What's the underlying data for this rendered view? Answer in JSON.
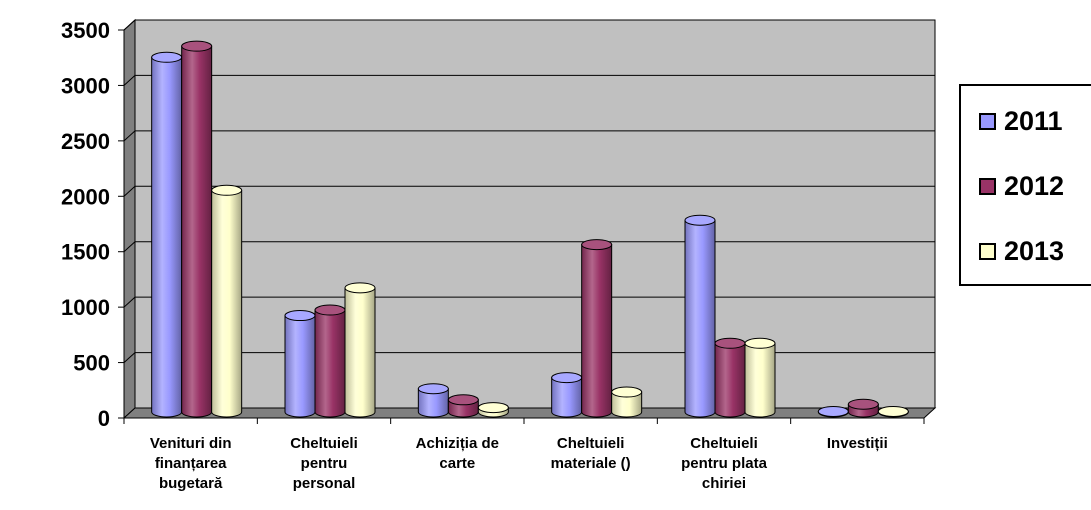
{
  "chart_data": {
    "type": "bar",
    "categories": [
      [
        "Venituri din",
        "finanțarea",
        "bugetară"
      ],
      [
        "Cheltuieli",
        "pentru",
        "personal"
      ],
      [
        "Achiziția de",
        "carte"
      ],
      [
        "Cheltuieli",
        "materiale ()"
      ],
      [
        "Cheltuieli",
        "pentru plata",
        "chiriei"
      ],
      [
        "Investiții"
      ]
    ],
    "series": [
      {
        "name": "2011",
        "color": "#9999ff",
        "values": [
          3200,
          870,
          210,
          310,
          1730,
          5
        ]
      },
      {
        "name": "2012",
        "color": "#993366",
        "values": [
          3300,
          920,
          110,
          1510,
          620,
          70
        ]
      },
      {
        "name": "2013",
        "color": "#ffffcc",
        "values": [
          2000,
          1120,
          40,
          180,
          620,
          5
        ]
      }
    ],
    "ylim": [
      0,
      3500
    ],
    "yticks": [
      "0",
      "500",
      "1000",
      "1500",
      "2000",
      "2500",
      "3000",
      "3500"
    ],
    "grid": true,
    "legend_position": "right",
    "plot_background": "#c0c0c0",
    "wall_side_color": "#808080"
  }
}
